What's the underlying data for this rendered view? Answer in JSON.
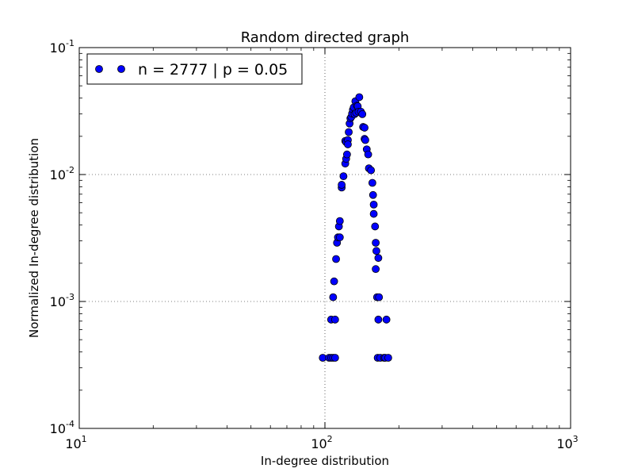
{
  "chart_data": {
    "type": "scatter",
    "title": "Random directed graph",
    "xlabel": "In-degree distribution",
    "ylabel": "Normalized In-degree distribution",
    "x_scale": "log",
    "y_scale": "log",
    "xlim": [
      10,
      1000
    ],
    "ylim": [
      0.0001,
      0.1
    ],
    "grid": true,
    "legend_placement": "top-left",
    "x_ticks": [
      {
        "value": 10,
        "base": "10",
        "exp": "1"
      },
      {
        "value": 100,
        "base": "10",
        "exp": "2"
      },
      {
        "value": 1000,
        "base": "10",
        "exp": "3"
      }
    ],
    "y_ticks": [
      {
        "value": 0.0001,
        "base": "10",
        "exp": "-4"
      },
      {
        "value": 0.001,
        "base": "10",
        "exp": "-3"
      },
      {
        "value": 0.01,
        "base": "10",
        "exp": "-2"
      },
      {
        "value": 0.1,
        "base": "10",
        "exp": "-1"
      }
    ],
    "series": [
      {
        "name": "n = 2777 | p = 0.05",
        "color": "#0000ff",
        "edge_color": "#000000",
        "points": [
          [
            98,
            0.00036
          ],
          [
            104,
            0.00036
          ],
          [
            106,
            0.00036
          ],
          [
            108,
            0.00036
          ],
          [
            110,
            0.00036
          ],
          [
            106,
            0.00072
          ],
          [
            110,
            0.00072
          ],
          [
            108,
            0.00108
          ],
          [
            109,
            0.00144
          ],
          [
            111,
            0.00216
          ],
          [
            112,
            0.0029
          ],
          [
            113,
            0.0032
          ],
          [
            115,
            0.0032
          ],
          [
            114,
            0.0039
          ],
          [
            115,
            0.0043
          ],
          [
            117,
            0.0079
          ],
          [
            117,
            0.0083
          ],
          [
            119,
            0.0097
          ],
          [
            121,
            0.0122
          ],
          [
            122,
            0.0133
          ],
          [
            123,
            0.0144
          ],
          [
            121,
            0.0184
          ],
          [
            122,
            0.018
          ],
          [
            124,
            0.0187
          ],
          [
            124,
            0.0173
          ],
          [
            125,
            0.0216
          ],
          [
            126,
            0.0252
          ],
          [
            127,
            0.0277
          ],
          [
            128,
            0.0284
          ],
          [
            129,
            0.0302
          ],
          [
            130,
            0.0324
          ],
          [
            131,
            0.0338
          ],
          [
            132,
            0.0299
          ],
          [
            133,
            0.0378
          ],
          [
            134,
            0.0306
          ],
          [
            135,
            0.0349
          ],
          [
            136,
            0.0345
          ],
          [
            137,
            0.0313
          ],
          [
            138,
            0.0407
          ],
          [
            140,
            0.0313
          ],
          [
            142,
            0.0299
          ],
          [
            143,
            0.0237
          ],
          [
            145,
            0.0234
          ],
          [
            145,
            0.0191
          ],
          [
            146,
            0.0187
          ],
          [
            148,
            0.0158
          ],
          [
            150,
            0.0144
          ],
          [
            151,
            0.0112
          ],
          [
            154,
            0.0108
          ],
          [
            156,
            0.0086
          ],
          [
            157,
            0.0069
          ],
          [
            158,
            0.0058
          ],
          [
            158,
            0.0049
          ],
          [
            160,
            0.0039
          ],
          [
            161,
            0.0029
          ],
          [
            162,
            0.0025
          ],
          [
            165,
            0.0022
          ],
          [
            161,
            0.0018
          ],
          [
            163,
            0.00108
          ],
          [
            166,
            0.00108
          ],
          [
            165,
            0.00072
          ],
          [
            178,
            0.00072
          ],
          [
            164,
            0.00036
          ],
          [
            168,
            0.00036
          ],
          [
            174,
            0.00036
          ],
          [
            176,
            0.00036
          ],
          [
            181,
            0.00036
          ]
        ]
      }
    ]
  }
}
